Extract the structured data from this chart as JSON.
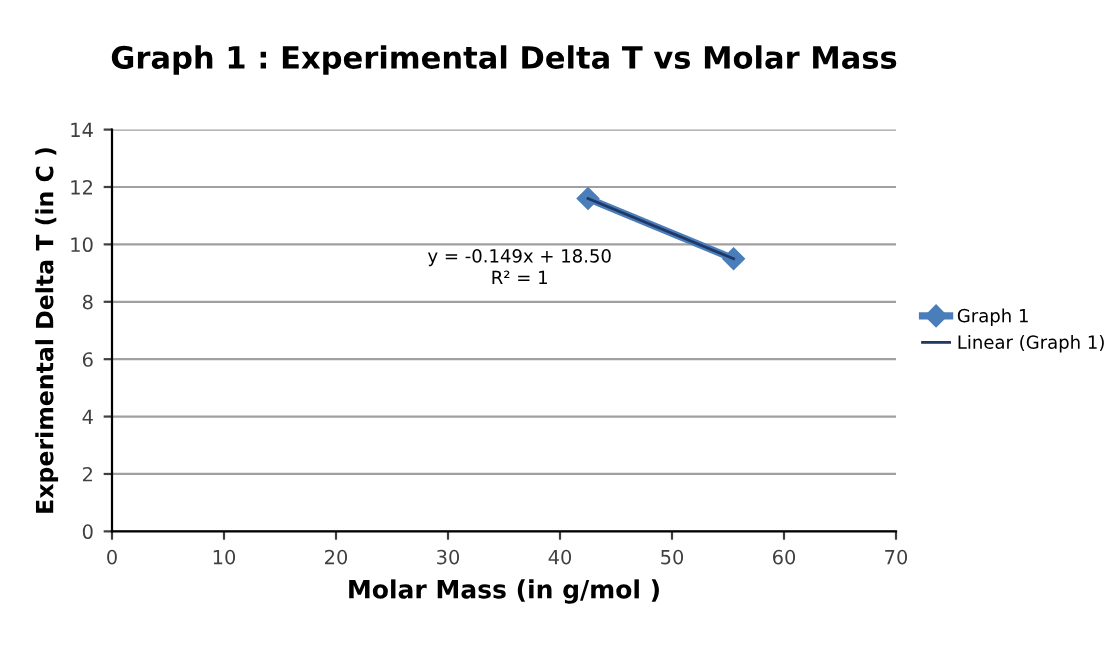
{
  "chart_data": {
    "type": "line",
    "title": "Graph 1 : Experimental Delta T vs Molar Mass",
    "xlabel": "Molar Mass (in g/mol )",
    "ylabel": "Experimental Delta T (in C )",
    "x": [
      42.5,
      55.5
    ],
    "series": [
      {
        "name": "Graph 1",
        "color": "#4a7ebb",
        "values": [
          11.6,
          9.5
        ],
        "marker": "diamond"
      },
      {
        "name": "Linear (Graph 1)",
        "color": "#1f3864",
        "values": [
          11.6,
          9.5
        ],
        "marker": "none"
      }
    ],
    "annotations": [
      "y = -0.149x + 18.50\nR² = 1"
    ],
    "xlim": [
      0,
      70
    ],
    "xticks": [
      0,
      10,
      20,
      30,
      40,
      50,
      60,
      70
    ],
    "ylim": [
      0,
      14
    ],
    "yticks": [
      0,
      2,
      4,
      6,
      8,
      10,
      12,
      14
    ],
    "grid": "y",
    "legend": "right"
  }
}
